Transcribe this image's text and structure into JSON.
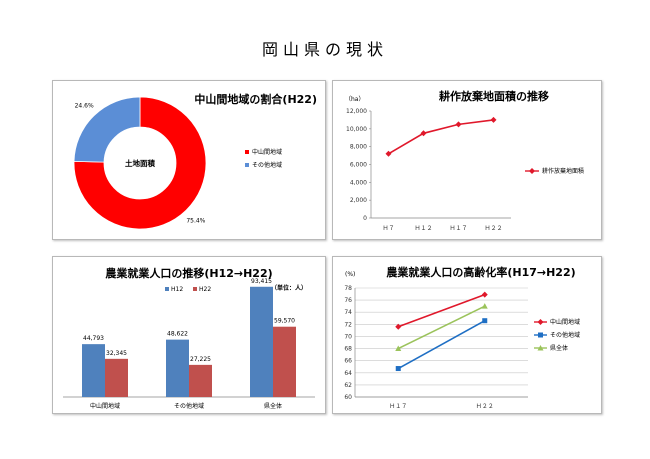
{
  "page_title": "岡山県の現状",
  "colors": {
    "red": "#ff0000",
    "blue": "#5b8ed6",
    "line_red": "#e0182b",
    "bar_blue": "#4f81bd",
    "bar_red": "#c0504d",
    "line_blue": "#1f6fc4",
    "line_green": "#9bc35b"
  },
  "chart_data": [
    {
      "type": "pie",
      "title": "中山間地域の割合(H22)",
      "center_label": "土地面積",
      "categories": [
        "中山間地域",
        "その他地域"
      ],
      "values": [
        75.4,
        24.6
      ],
      "value_labels": [
        "75.4%",
        "24.6%"
      ],
      "legend": "right"
    },
    {
      "type": "line",
      "title": "耕作放棄地面積の推移",
      "unit": "（ha）",
      "categories": [
        "Ｈ７",
        "Ｈ１２",
        "Ｈ１７",
        "Ｈ２２"
      ],
      "series": [
        {
          "name": "耕作放棄地面積",
          "values": [
            7200,
            9500,
            10500,
            11000
          ]
        }
      ],
      "ylim": [
        0,
        12000
      ],
      "yticks": [
        "0",
        "2,000",
        "4,000",
        "6,000",
        "8,000",
        "10,000",
        "12,000"
      ],
      "legend": "right",
      "grid": false
    },
    {
      "type": "bar",
      "title": "農業就業人口の推移(H12→H22)",
      "unit": "（単位：人）",
      "categories": [
        "中山間地域",
        "その他地域",
        "県全体"
      ],
      "series": [
        {
          "name": "H12",
          "values": [
            44793,
            48622,
            93415
          ],
          "labels": [
            "44,793",
            "48,622",
            "93,415"
          ]
        },
        {
          "name": "H22",
          "values": [
            32345,
            27225,
            59570
          ],
          "labels": [
            "32,345",
            "27,225",
            "59,570"
          ]
        }
      ],
      "ylim": [
        0,
        100000
      ],
      "legend": "top"
    },
    {
      "type": "line",
      "title": "農業就業人口の高齢化率(H17→H22)",
      "unit": "(%)",
      "categories": [
        "Ｈ１７",
        "Ｈ２２"
      ],
      "series": [
        {
          "name": "中山間地域",
          "values": [
            71.6,
            76.9
          ]
        },
        {
          "name": "その他地域",
          "values": [
            64.7,
            72.6
          ]
        },
        {
          "name": "県全体",
          "values": [
            68.0,
            75.0
          ]
        }
      ],
      "ylim": [
        60,
        78
      ],
      "yticks": [
        "60",
        "62",
        "64",
        "66",
        "68",
        "70",
        "72",
        "74",
        "76",
        "78"
      ],
      "legend": "right",
      "grid": true
    }
  ]
}
